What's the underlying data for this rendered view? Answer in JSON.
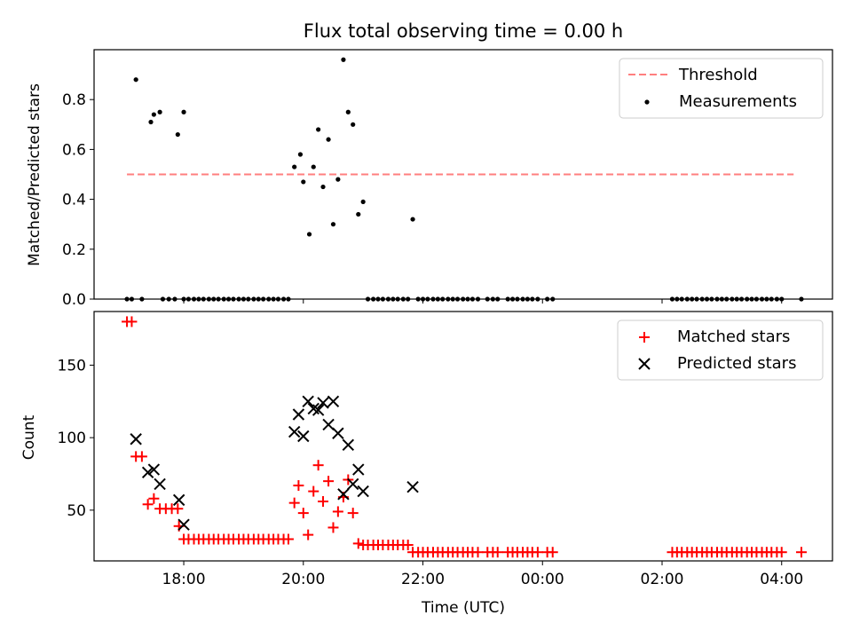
{
  "chart_data": [
    {
      "type": "scatter",
      "title": "Flux total observing time = 0.00 h",
      "xlabel": "",
      "ylabel": "Matched/Predicted stars",
      "x_unit": "hours (UTC, continuing past midnight)",
      "xlim": [
        16.5,
        28.85
      ],
      "ylim": [
        0.0,
        1.0
      ],
      "yticks": [
        0.0,
        0.2,
        0.4,
        0.6,
        0.8
      ],
      "ytick_labels": [
        "0.0",
        "0.2",
        "0.4",
        "0.6",
        "0.8"
      ],
      "legend": {
        "placement": "top-right",
        "entries": [
          {
            "label": "Threshold",
            "style": "dashed-line",
            "color": "#ff7f7f"
          },
          {
            "label": "Measurements",
            "style": "dot",
            "color": "#000000"
          }
        ]
      },
      "series": [
        {
          "name": "Threshold",
          "type": "line",
          "color": "#ff7f7f",
          "x": [
            17.05,
            28.2
          ],
          "y": [
            0.5,
            0.5
          ]
        },
        {
          "name": "Measurements",
          "type": "scatter",
          "color": "#000000",
          "points": [
            [
              17.2,
              0.88
            ],
            [
              17.45,
              0.71
            ],
            [
              17.5,
              0.74
            ],
            [
              17.6,
              0.75
            ],
            [
              17.9,
              0.66
            ],
            [
              18.0,
              0.75
            ],
            [
              19.85,
              0.53
            ],
            [
              19.95,
              0.58
            ],
            [
              20.0,
              0.47
            ],
            [
              20.1,
              0.26
            ],
            [
              20.17,
              0.53
            ],
            [
              20.25,
              0.68
            ],
            [
              20.33,
              0.45
            ],
            [
              20.42,
              0.64
            ],
            [
              20.5,
              0.3
            ],
            [
              20.58,
              0.48
            ],
            [
              20.67,
              0.96
            ],
            [
              20.75,
              0.75
            ],
            [
              20.83,
              0.7
            ],
            [
              20.92,
              0.34
            ],
            [
              21.0,
              0.39
            ],
            [
              21.83,
              0.32
            ],
            [
              17.05,
              0
            ],
            [
              17.13,
              0
            ],
            [
              17.3,
              0
            ],
            [
              17.65,
              0
            ],
            [
              17.75,
              0
            ],
            [
              17.85,
              0
            ],
            [
              18.0,
              0
            ],
            [
              18.08,
              0
            ],
            [
              18.17,
              0
            ],
            [
              18.25,
              0
            ],
            [
              18.33,
              0
            ],
            [
              18.42,
              0
            ],
            [
              18.5,
              0
            ],
            [
              18.58,
              0
            ],
            [
              18.67,
              0
            ],
            [
              18.75,
              0
            ],
            [
              18.83,
              0
            ],
            [
              18.92,
              0
            ],
            [
              19.0,
              0
            ],
            [
              19.08,
              0
            ],
            [
              19.17,
              0
            ],
            [
              19.25,
              0
            ],
            [
              19.33,
              0
            ],
            [
              19.42,
              0
            ],
            [
              19.5,
              0
            ],
            [
              19.58,
              0
            ],
            [
              19.67,
              0
            ],
            [
              19.75,
              0
            ],
            [
              21.08,
              0
            ],
            [
              21.17,
              0
            ],
            [
              21.25,
              0
            ],
            [
              21.33,
              0
            ],
            [
              21.42,
              0
            ],
            [
              21.5,
              0
            ],
            [
              21.58,
              0
            ],
            [
              21.67,
              0
            ],
            [
              21.75,
              0
            ],
            [
              21.92,
              0
            ],
            [
              22.0,
              0
            ],
            [
              22.08,
              0
            ],
            [
              22.17,
              0
            ],
            [
              22.25,
              0
            ],
            [
              22.33,
              0
            ],
            [
              22.42,
              0
            ],
            [
              22.5,
              0
            ],
            [
              22.58,
              0
            ],
            [
              22.67,
              0
            ],
            [
              22.75,
              0
            ],
            [
              22.83,
              0
            ],
            [
              22.92,
              0
            ],
            [
              23.08,
              0
            ],
            [
              23.17,
              0
            ],
            [
              23.25,
              0
            ],
            [
              23.42,
              0
            ],
            [
              23.5,
              0
            ],
            [
              23.58,
              0
            ],
            [
              23.67,
              0
            ],
            [
              23.75,
              0
            ],
            [
              23.83,
              0
            ],
            [
              23.92,
              0
            ],
            [
              24.08,
              0
            ],
            [
              24.17,
              0
            ],
            [
              26.17,
              0
            ],
            [
              26.25,
              0
            ],
            [
              26.33,
              0
            ],
            [
              26.42,
              0
            ],
            [
              26.5,
              0
            ],
            [
              26.58,
              0
            ],
            [
              26.67,
              0
            ],
            [
              26.75,
              0
            ],
            [
              26.83,
              0
            ],
            [
              26.92,
              0
            ],
            [
              27.0,
              0
            ],
            [
              27.08,
              0
            ],
            [
              27.17,
              0
            ],
            [
              27.25,
              0
            ],
            [
              27.33,
              0
            ],
            [
              27.42,
              0
            ],
            [
              27.5,
              0
            ],
            [
              27.58,
              0
            ],
            [
              27.67,
              0
            ],
            [
              27.75,
              0
            ],
            [
              27.83,
              0
            ],
            [
              27.92,
              0
            ],
            [
              28.0,
              0
            ],
            [
              28.33,
              0
            ]
          ]
        }
      ]
    },
    {
      "type": "scatter",
      "title": "",
      "xlabel": "Time (UTC)",
      "ylabel": "Count",
      "x_unit": "hours (UTC, continuing past midnight)",
      "xlim": [
        16.5,
        28.85
      ],
      "ylim": [
        15,
        187
      ],
      "xticks": [
        18,
        20,
        22,
        24,
        26,
        28
      ],
      "xtick_labels": [
        "18:00",
        "20:00",
        "22:00",
        "00:00",
        "02:00",
        "04:00"
      ],
      "yticks": [
        50,
        100,
        150
      ],
      "ytick_labels": [
        "50",
        "100",
        "150"
      ],
      "legend": {
        "placement": "top-right",
        "entries": [
          {
            "label": "Matched stars",
            "style": "plus",
            "color": "#ff0000"
          },
          {
            "label": "Predicted stars",
            "style": "x",
            "color": "#000000"
          }
        ]
      },
      "series": [
        {
          "name": "Matched stars",
          "type": "scatter",
          "marker": "plus",
          "color": "#ff0000",
          "points": [
            [
              17.05,
              180
            ],
            [
              17.13,
              180
            ],
            [
              17.2,
              87
            ],
            [
              17.3,
              87
            ],
            [
              17.4,
              54
            ],
            [
              17.5,
              58
            ],
            [
              17.6,
              51
            ],
            [
              17.7,
              51
            ],
            [
              17.8,
              51
            ],
            [
              17.9,
              51
            ],
            [
              17.92,
              39
            ],
            [
              18.0,
              30
            ],
            [
              18.08,
              30
            ],
            [
              18.17,
              30
            ],
            [
              18.25,
              30
            ],
            [
              18.33,
              30
            ],
            [
              18.42,
              30
            ],
            [
              18.5,
              30
            ],
            [
              18.58,
              30
            ],
            [
              18.67,
              30
            ],
            [
              18.75,
              30
            ],
            [
              18.83,
              30
            ],
            [
              18.92,
              30
            ],
            [
              19.0,
              30
            ],
            [
              19.08,
              30
            ],
            [
              19.17,
              30
            ],
            [
              19.25,
              30
            ],
            [
              19.33,
              30
            ],
            [
              19.42,
              30
            ],
            [
              19.5,
              30
            ],
            [
              19.58,
              30
            ],
            [
              19.67,
              30
            ],
            [
              19.75,
              30
            ],
            [
              19.85,
              55
            ],
            [
              19.92,
              67
            ],
            [
              20.0,
              48
            ],
            [
              20.08,
              33
            ],
            [
              20.17,
              63
            ],
            [
              20.25,
              81
            ],
            [
              20.33,
              56
            ],
            [
              20.42,
              70
            ],
            [
              20.5,
              38
            ],
            [
              20.58,
              49
            ],
            [
              20.67,
              59
            ],
            [
              20.75,
              71
            ],
            [
              20.83,
              48
            ],
            [
              20.92,
              27
            ],
            [
              21.0,
              26
            ],
            [
              21.08,
              26
            ],
            [
              21.17,
              26
            ],
            [
              21.25,
              26
            ],
            [
              21.33,
              26
            ],
            [
              21.42,
              26
            ],
            [
              21.5,
              26
            ],
            [
              21.58,
              26
            ],
            [
              21.67,
              26
            ],
            [
              21.75,
              26
            ],
            [
              21.83,
              21
            ],
            [
              21.92,
              21
            ],
            [
              22.0,
              21
            ],
            [
              22.08,
              21
            ],
            [
              22.17,
              21
            ],
            [
              22.25,
              21
            ],
            [
              22.33,
              21
            ],
            [
              22.42,
              21
            ],
            [
              22.5,
              21
            ],
            [
              22.58,
              21
            ],
            [
              22.67,
              21
            ],
            [
              22.75,
              21
            ],
            [
              22.83,
              21
            ],
            [
              22.92,
              21
            ],
            [
              23.08,
              21
            ],
            [
              23.17,
              21
            ],
            [
              23.25,
              21
            ],
            [
              23.42,
              21
            ],
            [
              23.5,
              21
            ],
            [
              23.58,
              21
            ],
            [
              23.67,
              21
            ],
            [
              23.75,
              21
            ],
            [
              23.83,
              21
            ],
            [
              23.92,
              21
            ],
            [
              24.08,
              21
            ],
            [
              24.17,
              21
            ],
            [
              26.17,
              21
            ],
            [
              26.25,
              21
            ],
            [
              26.33,
              21
            ],
            [
              26.42,
              21
            ],
            [
              26.5,
              21
            ],
            [
              26.58,
              21
            ],
            [
              26.67,
              21
            ],
            [
              26.75,
              21
            ],
            [
              26.83,
              21
            ],
            [
              26.92,
              21
            ],
            [
              27.0,
              21
            ],
            [
              27.08,
              21
            ],
            [
              27.17,
              21
            ],
            [
              27.25,
              21
            ],
            [
              27.33,
              21
            ],
            [
              27.42,
              21
            ],
            [
              27.5,
              21
            ],
            [
              27.58,
              21
            ],
            [
              27.67,
              21
            ],
            [
              27.75,
              21
            ],
            [
              27.83,
              21
            ],
            [
              27.92,
              21
            ],
            [
              28.0,
              21
            ],
            [
              28.33,
              21
            ]
          ]
        },
        {
          "name": "Predicted stars",
          "type": "scatter",
          "marker": "x",
          "color": "#000000",
          "points": [
            [
              17.2,
              99
            ],
            [
              17.4,
              76
            ],
            [
              17.5,
              78
            ],
            [
              17.6,
              68
            ],
            [
              17.92,
              57
            ],
            [
              18.0,
              40
            ],
            [
              19.85,
              104
            ],
            [
              19.92,
              116
            ],
            [
              20.0,
              101
            ],
            [
              20.08,
              125
            ],
            [
              20.17,
              120
            ],
            [
              20.25,
              119
            ],
            [
              20.33,
              124
            ],
            [
              20.42,
              109
            ],
            [
              20.5,
              125
            ],
            [
              20.58,
              103
            ],
            [
              20.67,
              61
            ],
            [
              20.75,
              95
            ],
            [
              20.83,
              68
            ],
            [
              20.92,
              78
            ],
            [
              21.0,
              63
            ],
            [
              21.83,
              66
            ]
          ]
        }
      ]
    }
  ]
}
